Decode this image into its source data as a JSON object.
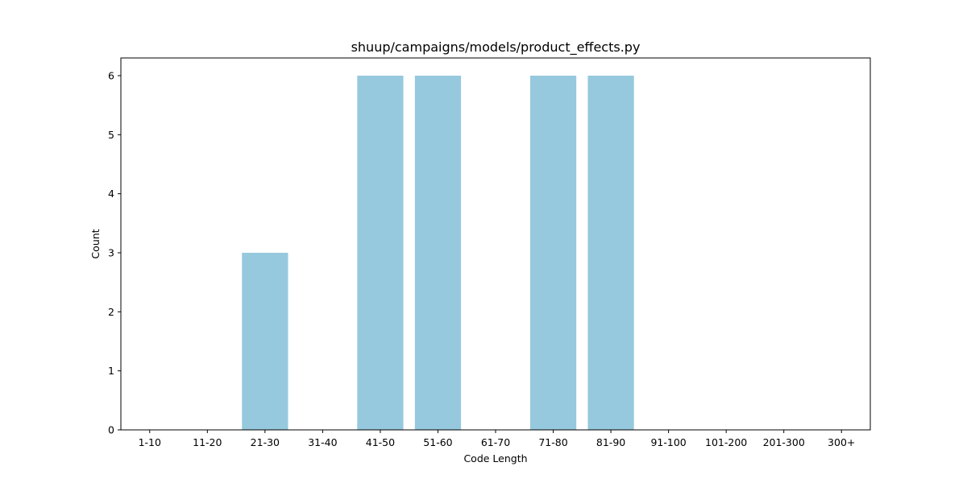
{
  "chart_data": {
    "type": "bar",
    "title": "shuup/campaigns/models/product_effects.py",
    "xlabel": "Code Length",
    "ylabel": "Count",
    "categories": [
      "1-10",
      "11-20",
      "21-30",
      "31-40",
      "41-50",
      "51-60",
      "61-70",
      "71-80",
      "81-90",
      "91-100",
      "101-200",
      "201-300",
      "300+"
    ],
    "values": [
      0,
      0,
      3,
      0,
      6,
      6,
      0,
      6,
      6,
      0,
      0,
      0,
      0
    ],
    "ylim": [
      0,
      6.3
    ],
    "yticks": [
      0,
      1,
      2,
      3,
      4,
      5,
      6
    ],
    "grid": false,
    "bar_color": "#96c9dd"
  }
}
